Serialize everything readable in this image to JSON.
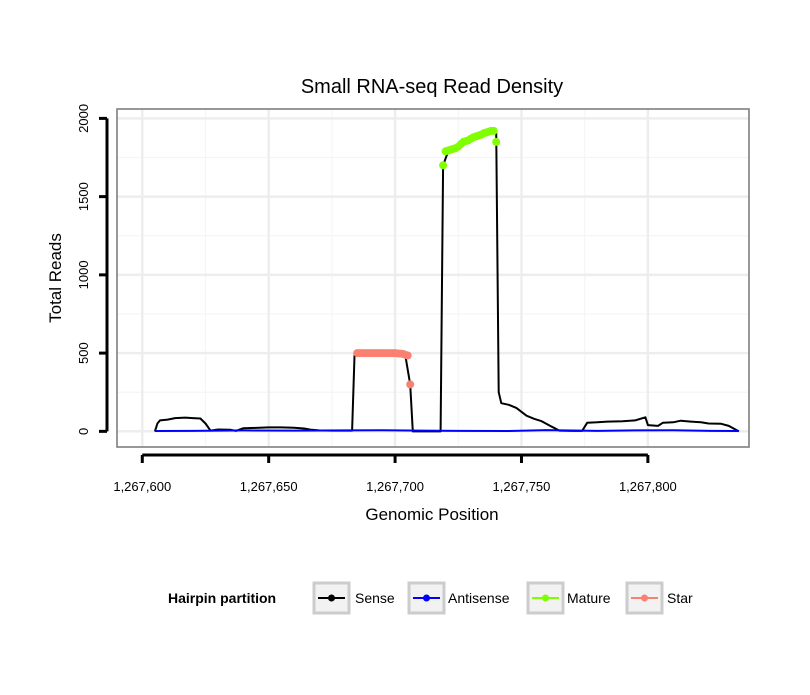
{
  "chart_data": {
    "type": "line",
    "title": "Small RNA-seq Read Density",
    "xlabel": "Genomic Position",
    "ylabel": "Total Reads",
    "xlim": [
      1267590,
      1267840
    ],
    "ylim": [
      -100,
      2060
    ],
    "x_ticks": [
      1267600,
      1267650,
      1267700,
      1267750,
      1267800
    ],
    "x_tick_labels": [
      "1,267,600",
      "1,267,650",
      "1,267,700",
      "1,267,750",
      "1,267,800"
    ],
    "y_ticks": [
      0,
      500,
      1000,
      1500,
      2000
    ],
    "y_tick_labels": [
      "0",
      "500",
      "1000",
      "1500",
      "2000"
    ],
    "legend": {
      "title": "Hairpin partition",
      "placement": "bottom",
      "entries": [
        {
          "name": "Sense",
          "color": "#000000"
        },
        {
          "name": "Antisense",
          "color": "#0000ff"
        },
        {
          "name": "Mature",
          "color": "#7fff00"
        },
        {
          "name": "Star",
          "color": "#fa8072"
        }
      ]
    },
    "series": [
      {
        "name": "Sense",
        "color": "#000000",
        "style": "line",
        "points": [
          [
            1267605,
            0
          ],
          [
            1267606,
            50
          ],
          [
            1267607,
            70
          ],
          [
            1267610,
            75
          ],
          [
            1267613,
            85
          ],
          [
            1267617,
            88
          ],
          [
            1267620,
            85
          ],
          [
            1267623,
            82
          ],
          [
            1267625,
            50
          ],
          [
            1267627,
            5
          ],
          [
            1267630,
            12
          ],
          [
            1267635,
            10
          ],
          [
            1267637,
            3
          ],
          [
            1267640,
            20
          ],
          [
            1267645,
            22
          ],
          [
            1267650,
            25
          ],
          [
            1267655,
            25
          ],
          [
            1267660,
            23
          ],
          [
            1267664,
            18
          ],
          [
            1267667,
            10
          ],
          [
            1267670,
            6
          ],
          [
            1267675,
            5
          ],
          [
            1267680,
            5
          ],
          [
            1267683,
            5
          ],
          [
            1267684,
            500
          ],
          [
            1267690,
            500
          ],
          [
            1267700,
            500
          ],
          [
            1267704,
            490
          ],
          [
            1267706,
            300
          ],
          [
            1267707,
            0
          ],
          [
            1267718,
            0
          ],
          [
            1267719,
            1700
          ],
          [
            1267721,
            1790
          ],
          [
            1267725,
            1820
          ],
          [
            1267730,
            1870
          ],
          [
            1267735,
            1905
          ],
          [
            1267738,
            1920
          ],
          [
            1267740,
            1920
          ],
          [
            1267741,
            250
          ],
          [
            1267742,
            180
          ],
          [
            1267745,
            170
          ],
          [
            1267748,
            150
          ],
          [
            1267752,
            100
          ],
          [
            1267755,
            80
          ],
          [
            1267758,
            65
          ],
          [
            1267762,
            30
          ],
          [
            1267765,
            5
          ],
          [
            1267770,
            3
          ],
          [
            1267774,
            3
          ],
          [
            1267776,
            55
          ],
          [
            1267780,
            58
          ],
          [
            1267784,
            62
          ],
          [
            1267790,
            65
          ],
          [
            1267795,
            70
          ],
          [
            1267799,
            90
          ],
          [
            1267800,
            40
          ],
          [
            1267804,
            35
          ],
          [
            1267806,
            55
          ],
          [
            1267810,
            58
          ],
          [
            1267813,
            68
          ],
          [
            1267817,
            62
          ],
          [
            1267821,
            58
          ],
          [
            1267824,
            50
          ],
          [
            1267829,
            48
          ],
          [
            1267832,
            35
          ],
          [
            1267836,
            0
          ]
        ]
      },
      {
        "name": "Antisense",
        "color": "#0000ff",
        "style": "line",
        "points": [
          [
            1267605,
            2
          ],
          [
            1267620,
            3
          ],
          [
            1267640,
            6
          ],
          [
            1267660,
            5
          ],
          [
            1267680,
            6
          ],
          [
            1267695,
            7
          ],
          [
            1267710,
            5
          ],
          [
            1267725,
            3
          ],
          [
            1267745,
            2
          ],
          [
            1267760,
            8
          ],
          [
            1267780,
            3
          ],
          [
            1267795,
            6
          ],
          [
            1267810,
            7
          ],
          [
            1267825,
            3
          ],
          [
            1267836,
            2
          ]
        ]
      },
      {
        "name": "Mature",
        "color": "#7fff00",
        "style": "points",
        "points": [
          [
            1267719,
            1700
          ],
          [
            1267720,
            1790
          ],
          [
            1267721,
            1795
          ],
          [
            1267722,
            1800
          ],
          [
            1267723,
            1805
          ],
          [
            1267724,
            1810
          ],
          [
            1267725,
            1820
          ],
          [
            1267726,
            1835
          ],
          [
            1267727,
            1850
          ],
          [
            1267728,
            1855
          ],
          [
            1267729,
            1860
          ],
          [
            1267730,
            1870
          ],
          [
            1267731,
            1880
          ],
          [
            1267732,
            1885
          ],
          [
            1267733,
            1890
          ],
          [
            1267734,
            1895
          ],
          [
            1267735,
            1905
          ],
          [
            1267736,
            1910
          ],
          [
            1267737,
            1915
          ],
          [
            1267738,
            1920
          ],
          [
            1267739,
            1920
          ],
          [
            1267740,
            1850
          ]
        ]
      },
      {
        "name": "Star",
        "color": "#fa8072",
        "style": "points",
        "points": [
          [
            1267685,
            500
          ],
          [
            1267686,
            500
          ],
          [
            1267687,
            500
          ],
          [
            1267688,
            500
          ],
          [
            1267689,
            500
          ],
          [
            1267690,
            500
          ],
          [
            1267691,
            500
          ],
          [
            1267692,
            500
          ],
          [
            1267693,
            500
          ],
          [
            1267694,
            500
          ],
          [
            1267695,
            500
          ],
          [
            1267696,
            500
          ],
          [
            1267697,
            500
          ],
          [
            1267698,
            500
          ],
          [
            1267699,
            500
          ],
          [
            1267700,
            500
          ],
          [
            1267701,
            498
          ],
          [
            1267702,
            497
          ],
          [
            1267703,
            495
          ],
          [
            1267704,
            490
          ],
          [
            1267705,
            485
          ],
          [
            1267706,
            300
          ]
        ]
      }
    ]
  }
}
